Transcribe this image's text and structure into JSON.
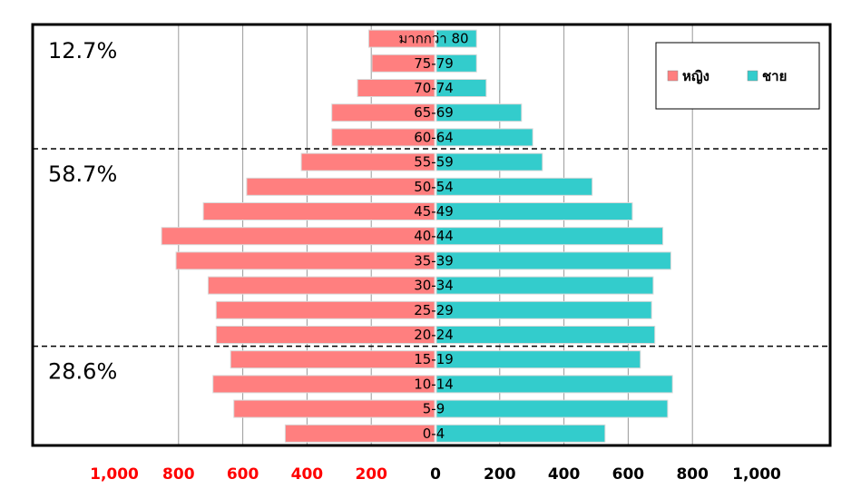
{
  "chart_data": {
    "type": "bar",
    "orientation": "horizontal",
    "title": "",
    "categories": [
      "0-4",
      "5-9",
      "10-14",
      "15-19",
      "20-24",
      "25-29",
      "30-34",
      "35-39",
      "40-44",
      "45-49",
      "50-54",
      "55-59",
      "60-64",
      "65-69",
      "70-74",
      "75-79",
      "มากกว่า 80"
    ],
    "series": [
      {
        "name": "หญิง",
        "color": "#ff7f7f",
        "side": "left",
        "values": [
          465,
          625,
          690,
          635,
          680,
          680,
          705,
          805,
          850,
          720,
          585,
          415,
          320,
          320,
          240,
          195,
          205
        ]
      },
      {
        "name": "ชาย",
        "color": "#33cccc",
        "side": "right",
        "values": [
          525,
          720,
          735,
          635,
          680,
          670,
          675,
          730,
          705,
          610,
          485,
          330,
          300,
          265,
          155,
          125,
          125
        ]
      }
    ],
    "xlim": [
      -1000,
      1000
    ],
    "x_ticks": [
      {
        "label": "1,000",
        "value": -1000,
        "color": "#ff0000"
      },
      {
        "label": "800",
        "value": -800,
        "color": "#ff0000"
      },
      {
        "label": "600",
        "value": -600,
        "color": "#ff0000"
      },
      {
        "label": "400",
        "value": -400,
        "color": "#ff0000"
      },
      {
        "label": "200",
        "value": -200,
        "color": "#ff0000"
      },
      {
        "label": "0",
        "value": 0,
        "color": "#000000"
      },
      {
        "label": "200",
        "value": 200,
        "color": "#000000"
      },
      {
        "label": "400",
        "value": 400,
        "color": "#000000"
      },
      {
        "label": "600",
        "value": 600,
        "color": "#000000"
      },
      {
        "label": "800",
        "value": 800,
        "color": "#000000"
      },
      {
        "label": "1,000",
        "value": 1000,
        "color": "#000000"
      }
    ],
    "gridlines": true,
    "legend_position": "top-right",
    "group_annotations": [
      {
        "label": "12.7%",
        "from_category": "60-64",
        "to_category": "มากกว่า 80"
      },
      {
        "label": "58.7%",
        "from_category": "20-24",
        "to_category": "55-59"
      },
      {
        "label": "28.6%",
        "from_category": "0-4",
        "to_category": "15-19"
      }
    ]
  }
}
